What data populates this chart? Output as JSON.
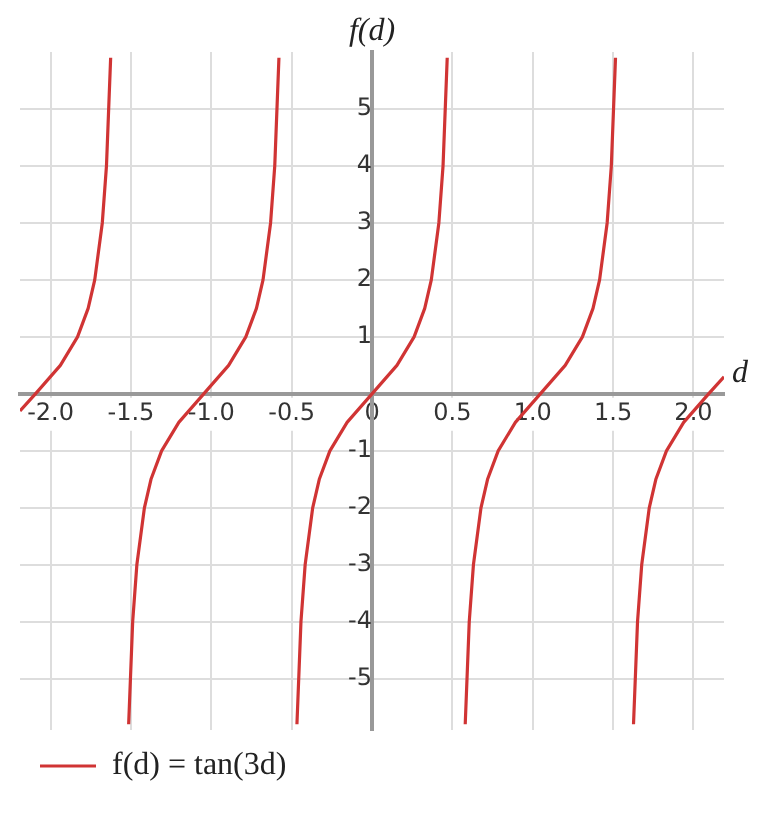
{
  "chart_data": {
    "type": "line",
    "xlabel": "d",
    "ylabel": "f(d)",
    "xlim": [
      -2.19,
      2.19
    ],
    "ylim": [
      -5.9,
      6
    ],
    "xticks": [
      {
        "value": -2,
        "label": "-2.0"
      },
      -1.5,
      {
        "value": -1,
        "label": "-1.0"
      },
      -0.5,
      0,
      0.5,
      {
        "value": 1,
        "label": "1.0"
      },
      1.5,
      {
        "value": 2,
        "label": "2.0"
      }
    ],
    "yticks": [
      -5,
      -4,
      -3,
      -2,
      -1,
      1,
      2,
      3,
      4,
      5
    ],
    "grid": true,
    "legend": "bottom left",
    "marker": "none",
    "line_style": "solid",
    "series": [
      {
        "name": "f(d) = tan(3d)",
        "color": "#d03434",
        "x": [
          -2.19,
          -2.094,
          -1.939,
          -1.832,
          -1.766,
          -1.725,
          -1.678,
          -1.652,
          -1.626,
          -1.571,
          -1.514,
          -1.489,
          -1.463,
          -1.416,
          -1.375,
          -1.309,
          -1.202,
          -1.047,
          -0.892,
          -0.785,
          -0.719,
          -0.678,
          -0.631,
          -0.605,
          -0.579,
          -0.524,
          -0.467,
          -0.442,
          -0.416,
          -0.369,
          -0.328,
          -0.262,
          -0.155,
          0,
          0.155,
          0.262,
          0.328,
          0.369,
          0.416,
          0.442,
          0.468,
          0.524,
          0.58,
          0.605,
          0.631,
          0.678,
          0.719,
          0.785,
          0.892,
          1.047,
          1.202,
          1.309,
          1.375,
          1.416,
          1.463,
          1.489,
          1.515,
          1.571,
          1.627,
          1.652,
          1.678,
          1.725,
          1.766,
          1.832,
          1.939,
          2.094,
          2.19
        ],
        "values": [
          -0.3,
          0,
          0.5,
          1,
          1.5,
          2,
          3,
          4,
          5.9,
          null,
          -5.8,
          -4,
          -3,
          -2,
          -1.5,
          -1,
          -0.5,
          0,
          0.5,
          1,
          1.5,
          2,
          3,
          4,
          5.9,
          null,
          -5.8,
          -4,
          -3,
          -2,
          -1.5,
          -1,
          -0.5,
          0,
          0.5,
          1,
          1.5,
          2,
          3,
          4,
          5.9,
          null,
          -5.8,
          -4,
          -3,
          -2,
          -1.5,
          -1,
          -0.5,
          0,
          0.5,
          1,
          1.5,
          2,
          3,
          4,
          5.9,
          null,
          -5.8,
          -4,
          -3,
          -2,
          -1.5,
          -1,
          -0.5,
          0,
          0.3
        ]
      }
    ]
  }
}
